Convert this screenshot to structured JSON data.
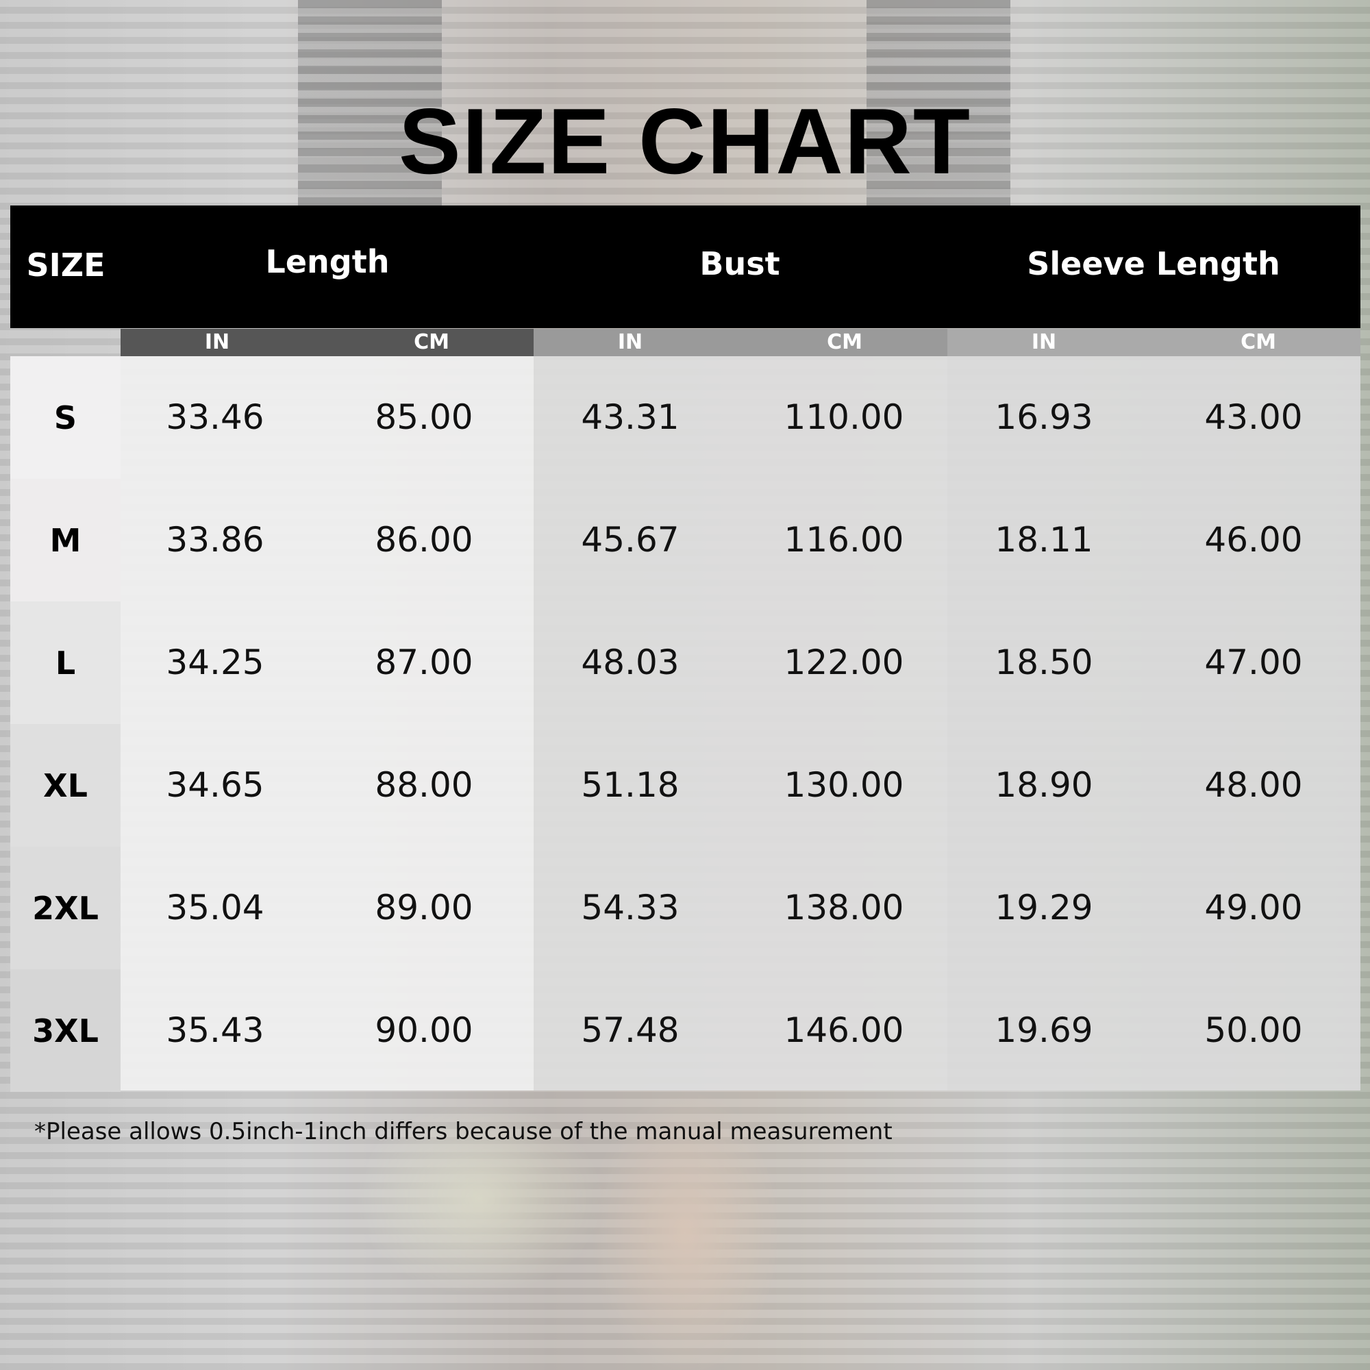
{
  "title": "SIZE CHART",
  "headers": {
    "size": "SIZE",
    "groups": [
      "Length",
      "Bust",
      "Sleeve Length"
    ]
  },
  "units": [
    "IN",
    "CM",
    "IN",
    "CM",
    "IN",
    "CM"
  ],
  "rows": [
    {
      "size": "S",
      "values": [
        "33.46",
        "85.00",
        "43.31",
        "110.00",
        "16.93",
        "43.00"
      ]
    },
    {
      "size": "M",
      "values": [
        "33.86",
        "86.00",
        "45.67",
        "116.00",
        "18.11",
        "46.00"
      ]
    },
    {
      "size": "L",
      "values": [
        "34.25",
        "87.00",
        "48.03",
        "122.00",
        "18.50",
        "47.00"
      ]
    },
    {
      "size": "XL",
      "values": [
        "34.65",
        "88.00",
        "51.18",
        "130.00",
        "18.90",
        "48.00"
      ]
    },
    {
      "size": "2XL",
      "values": [
        "35.04",
        "89.00",
        "54.33",
        "138.00",
        "19.29",
        "49.00"
      ]
    },
    {
      "size": "3XL",
      "values": [
        "35.43",
        "90.00",
        "57.48",
        "146.00",
        "19.69",
        "50.00"
      ]
    }
  ],
  "note": "*Please allows 0.5inch-1inch differs because of the manual measurement",
  "colors": {
    "header": "#000000",
    "sub_length": "#565656",
    "sub_bust": "#9a9a9a",
    "sub_sleeve": "#aaaaaa"
  }
}
